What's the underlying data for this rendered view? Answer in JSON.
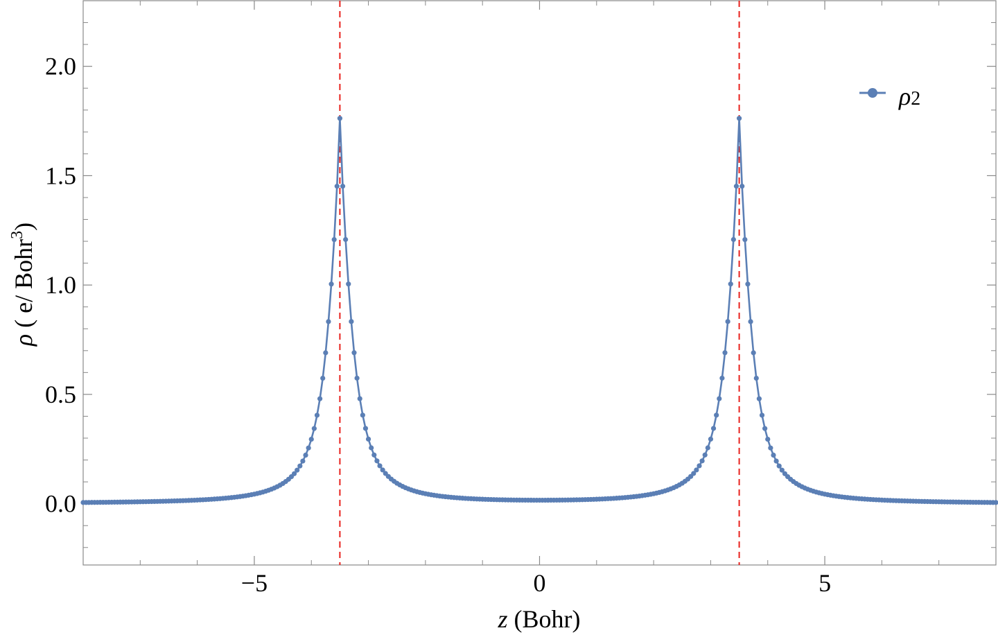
{
  "chart_data": {
    "type": "line",
    "title": "",
    "xlabel_var": "z",
    "xlabel_unit": " (Bohr)",
    "ylabel_var": "ρ",
    "ylabel_unit": " ( e/ Bohr",
    "ylabel_sup": "3",
    "ylabel_close": ")",
    "xlim": [
      -8,
      8
    ],
    "ylim": [
      -0.28,
      2.3
    ],
    "xticks": [
      -5,
      0,
      5
    ],
    "xtick_labels": [
      "−5",
      "0",
      "5"
    ],
    "yticks": [
      0.0,
      0.5,
      1.0,
      1.5,
      2.0
    ],
    "ytick_labels": [
      "0.0",
      "0.5",
      "1.0",
      "1.5",
      "2.0"
    ],
    "x_minor_step": 1,
    "y_minor_step": 0.1,
    "grid": false,
    "legend_position": "top-right",
    "vlines": [
      -3.5,
      3.5
    ],
    "series": [
      {
        "name_var": "ρ",
        "name_sub": "2",
        "color": "#5b7fb5",
        "marker": "circle",
        "x_range": [
          -8,
          8
        ],
        "x_step": 0.05,
        "peaks": [
          -3.5,
          3.5
        ],
        "peak_value": 1.76,
        "decay_a": 0.41,
        "decay_b": 0.31
      }
    ],
    "vline_color": "#e8211d",
    "frame_color": "#888888"
  }
}
